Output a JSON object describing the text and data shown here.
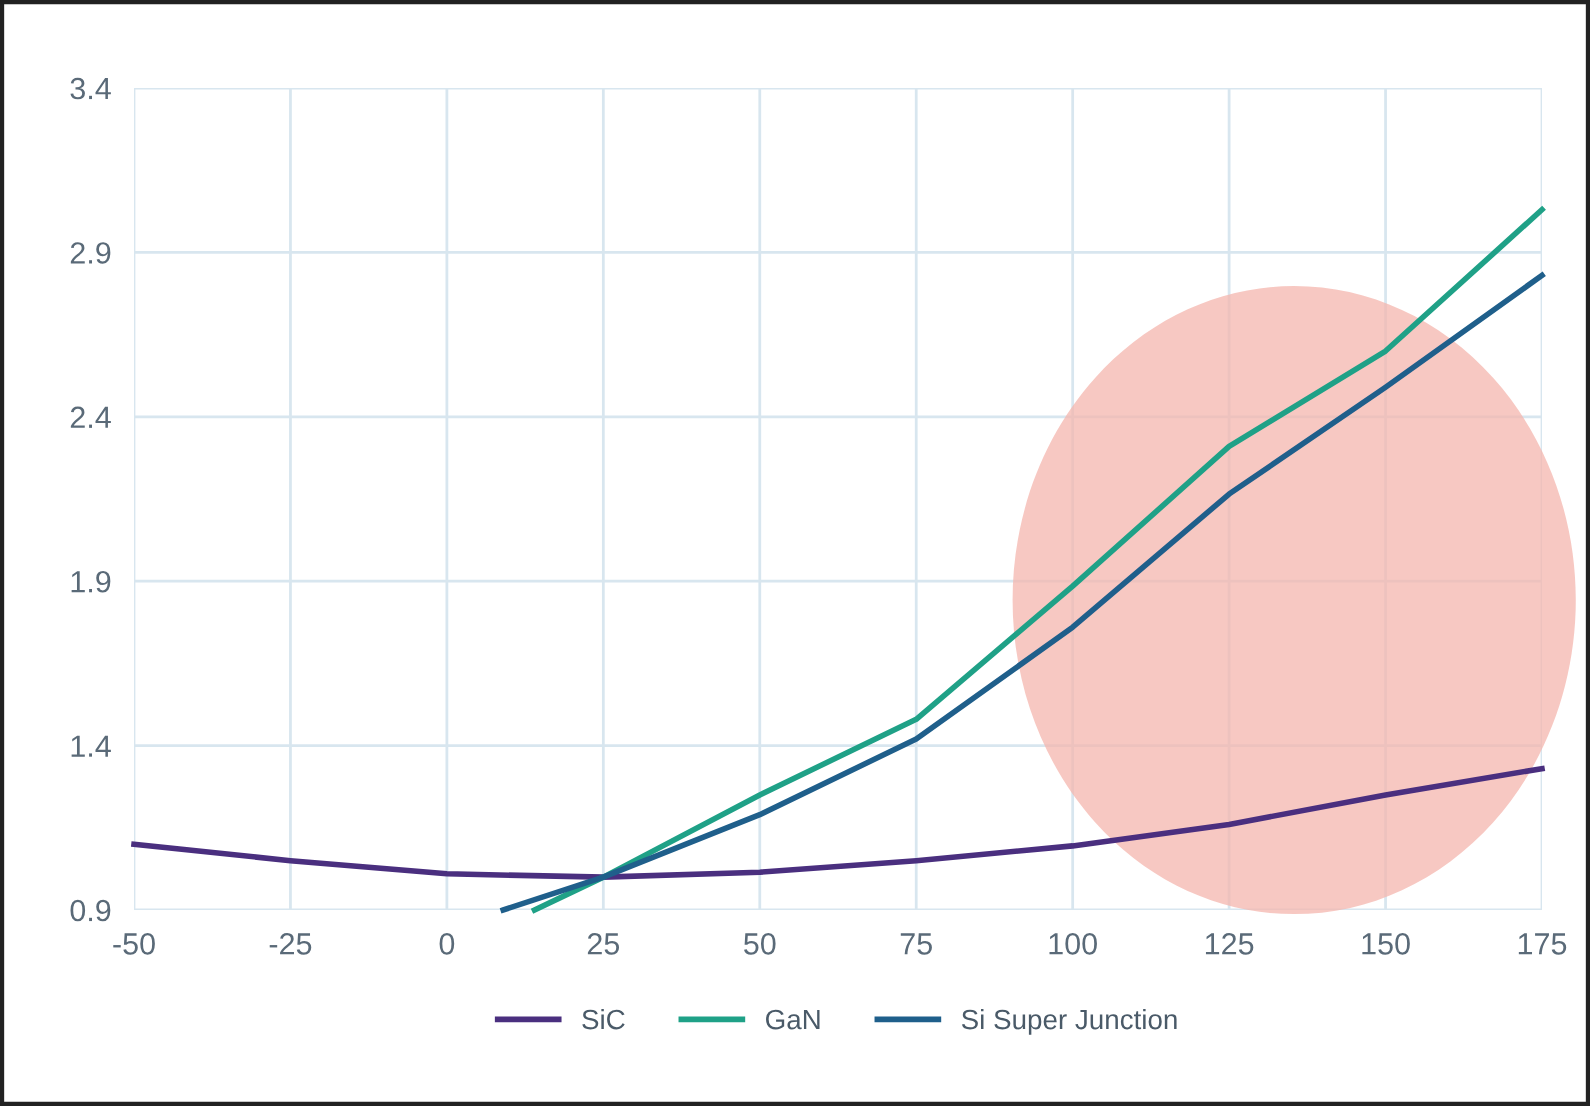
{
  "chart_data": {
    "type": "line",
    "xlim": [
      -50,
      175
    ],
    "ylim": [
      0.9,
      3.4
    ],
    "xticks": [
      -50,
      -25,
      0,
      25,
      50,
      75,
      100,
      125,
      150,
      175
    ],
    "yticks": [
      0.9,
      1.4,
      1.9,
      2.4,
      2.9,
      3.4
    ],
    "grid": true,
    "legend": "bottom",
    "line_style": "solid",
    "marker": "none",
    "series": [
      {
        "name": "SiC",
        "color": "#4a2f7f",
        "x": [
          -50,
          -25,
          0,
          25,
          50,
          75,
          100,
          125,
          150,
          175
        ],
        "values": [
          1.1,
          1.05,
          1.01,
          1.0,
          1.015,
          1.05,
          1.095,
          1.16,
          1.25,
          1.33
        ]
      },
      {
        "name": "GaN",
        "color": "#1fa187",
        "x": [
          14,
          25,
          50,
          75,
          100,
          125,
          150,
          175
        ],
        "values": [
          0.9,
          1.0,
          1.25,
          1.48,
          1.885,
          2.31,
          2.6,
          3.03
        ]
      },
      {
        "name": "Si Super Junction",
        "color": "#1f5f8b",
        "x": [
          9,
          25,
          50,
          75,
          100,
          125,
          150,
          175
        ],
        "values": [
          0.9,
          1.0,
          1.19,
          1.42,
          1.76,
          2.165,
          2.49,
          2.83
        ]
      }
    ]
  }
}
